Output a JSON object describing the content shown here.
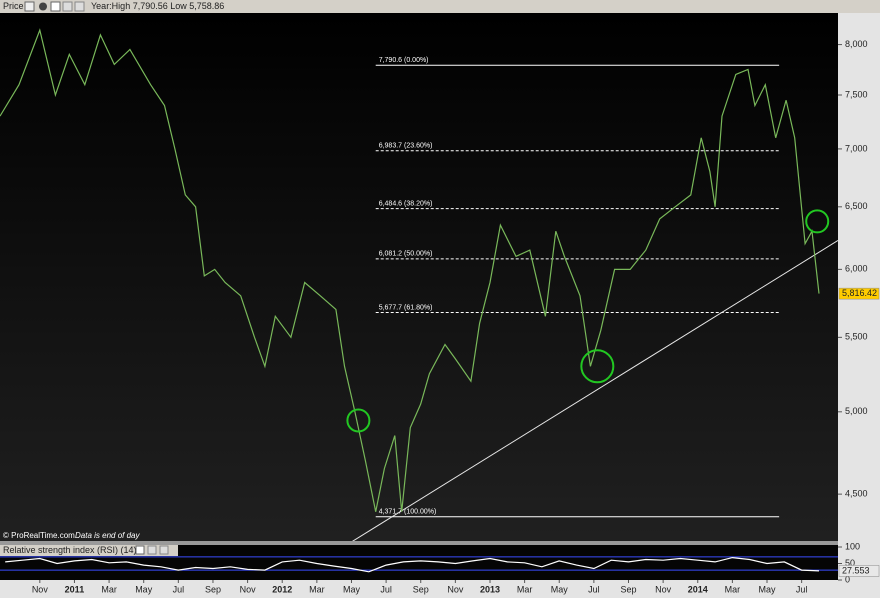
{
  "chart_data": [
    {
      "type": "line",
      "title": "Price",
      "subtitle": "Year:High 7,790.56 Low 5,758.86",
      "annotations": [
        "© ProRealTime.com",
        "Data is end of day"
      ],
      "log_scale": true,
      "xlim": [
        -2.3,
        46.1
      ],
      "ylim": [
        4238,
        8330
      ],
      "xticks": [
        {
          "value": 0,
          "label": "Nov"
        },
        {
          "value": 2,
          "label": "2011"
        },
        {
          "value": 4,
          "label": "Mar"
        },
        {
          "value": 6,
          "label": "May"
        },
        {
          "value": 8,
          "label": "Jul"
        },
        {
          "value": 10,
          "label": "Sep"
        },
        {
          "value": 12,
          "label": "Nov"
        },
        {
          "value": 14,
          "label": "2012"
        },
        {
          "value": 16,
          "label": "Mar"
        },
        {
          "value": 18,
          "label": "May"
        },
        {
          "value": 20,
          "label": "Jul"
        },
        {
          "value": 22,
          "label": "Sep"
        },
        {
          "value": 24,
          "label": "Nov"
        },
        {
          "value": 26,
          "label": "2013"
        },
        {
          "value": 28,
          "label": "Mar"
        },
        {
          "value": 30,
          "label": "May"
        },
        {
          "value": 32,
          "label": "Jul"
        },
        {
          "value": 34,
          "label": "Sep"
        },
        {
          "value": 36,
          "label": "Nov"
        },
        {
          "value": 38,
          "label": "2014"
        },
        {
          "value": 40,
          "label": "Mar"
        },
        {
          "value": 42,
          "label": "May"
        },
        {
          "value": 44,
          "label": "Jul"
        }
      ],
      "yticks": [
        {
          "value": 4500,
          "label": "4,500"
        },
        {
          "value": 5000,
          "label": "5,000"
        },
        {
          "value": 5500,
          "label": "5,500"
        },
        {
          "value": 6000,
          "label": "6,000"
        },
        {
          "value": 6500,
          "label": "6,500"
        },
        {
          "value": 7000,
          "label": "7,000"
        },
        {
          "value": 7500,
          "label": "7,500"
        },
        {
          "value": 8000,
          "label": "8,000"
        }
      ],
      "x": [
        -2.3,
        -1.2,
        0,
        0.9,
        1.7,
        2.6,
        3.5,
        4.3,
        5.2,
        6.4,
        7.2,
        7.8,
        8.4,
        9.0,
        9.5,
        10.1,
        10.7,
        11.6,
        12.4,
        13.0,
        13.6,
        14.5,
        15.3,
        16.2,
        17.1,
        17.6,
        18.2,
        18.8,
        19.4,
        19.9,
        20.5,
        20.9,
        21.4,
        22.0,
        22.5,
        23.4,
        24.0,
        24.9,
        25.4,
        26.0,
        26.6,
        27.5,
        28.3,
        29.2,
        29.8,
        30.3,
        31.2,
        31.8,
        32.4,
        33.2,
        34.1,
        35.0,
        35.8,
        36.7,
        37.6,
        38.2,
        38.7,
        39.0,
        39.4,
        40.2,
        40.9,
        41.3,
        41.9,
        42.5,
        43.1,
        43.6,
        44.2,
        44.6,
        45.0
      ],
      "series": [
        {
          "name": "Price",
          "color": "#79b85a",
          "values": [
            7300,
            7600,
            8150,
            7500,
            7900,
            7600,
            8100,
            7800,
            7950,
            7600,
            7400,
            7000,
            6600,
            6500,
            5950,
            6000,
            5900,
            5800,
            5500,
            5300,
            5650,
            5500,
            5900,
            5800,
            5700,
            5300,
            5000,
            4700,
            4400,
            4650,
            4850,
            4400,
            4900,
            5050,
            5250,
            5450,
            5350,
            5200,
            5600,
            5900,
            6350,
            6100,
            6150,
            5650,
            6300,
            6100,
            5800,
            5300,
            5550,
            6000,
            6000,
            6150,
            6400,
            6500,
            6600,
            7100,
            6800,
            6500,
            7300,
            7700,
            7750,
            7400,
            7600,
            7100,
            7450,
            7100,
            6200,
            6300,
            5816.42
          ]
        }
      ],
      "fib_x": [
        19.4,
        42.7
      ],
      "fib_levels": [
        {
          "value": 7790.6,
          "label": "7,790.6 (0.00%)"
        },
        {
          "value": 6983.7,
          "label": "6,983.7 (23.60%)"
        },
        {
          "value": 6484.6,
          "label": "6,484.6 (38.20%)"
        },
        {
          "value": 6081.2,
          "label": "6,081.2 (50.00%)"
        },
        {
          "value": 5677.7,
          "label": "5,677.7 (61.80%)"
        },
        {
          "value": 4371.7,
          "label": "4,371.7 (100.00%)"
        }
      ],
      "trendline": {
        "x": [
          18.0,
          46.1
        ],
        "values": [
          4233,
          6226
        ],
        "color": "#e6e6e6"
      },
      "highlights": {
        "color": "#22c722",
        "x": [
          18.4,
          32.2,
          44.9
        ],
        "values": [
          4945,
          5300,
          6380
        ]
      },
      "last_price": {
        "value": 5816.42,
        "label": "5,816.42"
      }
    },
    {
      "type": "line",
      "title": "Relative strength index (RSI) (14)",
      "xlim": [
        -2.3,
        46.1
      ],
      "ylim": [
        0,
        100
      ],
      "yticks": [
        0,
        50,
        100
      ],
      "levels": [
        70,
        30
      ],
      "level_color": "#3a4cff",
      "x": [
        -2,
        -1,
        0,
        1,
        2,
        3,
        4,
        5,
        6,
        7,
        8,
        9,
        10,
        11,
        12,
        13,
        14,
        15,
        16,
        17,
        18,
        19,
        20,
        21,
        22,
        23,
        24,
        25,
        26,
        27,
        28,
        29,
        30,
        31,
        32,
        33,
        34,
        35,
        36,
        37,
        38,
        39,
        40,
        41,
        42,
        43,
        44,
        45
      ],
      "series": [
        {
          "name": "RSI",
          "color": "#ffffff",
          "values": [
            55,
            60,
            65,
            50,
            58,
            62,
            52,
            55,
            45,
            40,
            30,
            38,
            35,
            40,
            32,
            30,
            55,
            60,
            50,
            42,
            35,
            25,
            45,
            55,
            58,
            55,
            50,
            58,
            65,
            55,
            52,
            40,
            58,
            45,
            35,
            60,
            55,
            62,
            60,
            65,
            60,
            55,
            68,
            62,
            50,
            55,
            30,
            27.553
          ]
        }
      ],
      "last_value": {
        "value": 27.553,
        "label": "27.553"
      }
    }
  ]
}
